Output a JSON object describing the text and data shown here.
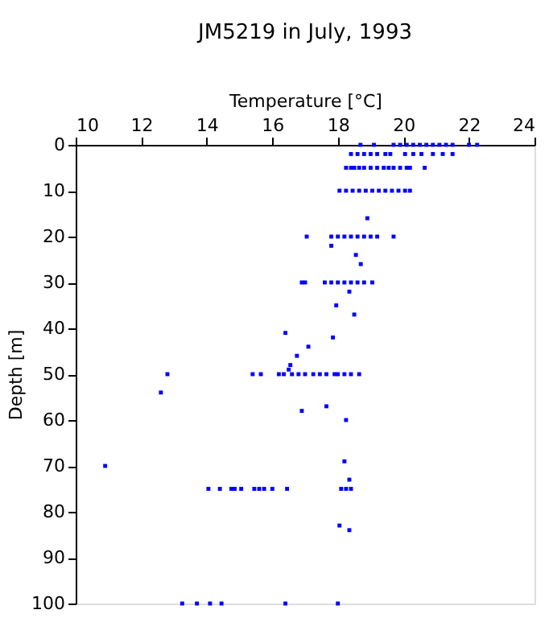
{
  "chart_data": {
    "type": "scatter",
    "title": "JM5219 in July, 1993",
    "xlabel": "Temperature [°C]",
    "ylabel": "Depth [m]",
    "xlim": [
      10,
      24
    ],
    "xticks": [
      10,
      12,
      14,
      16,
      18,
      20,
      22,
      24
    ],
    "ylim": [
      100,
      0
    ],
    "yticks": [
      0,
      10,
      20,
      30,
      40,
      50,
      60,
      70,
      80,
      90,
      100
    ],
    "grid": false,
    "marker": "square",
    "series": [
      {
        "color": "#0000ff",
        "x": [
          18.69,
          19.1,
          19.7,
          19.9,
          20.1,
          20.3,
          20.5,
          20.7,
          20.9,
          21.1,
          21.3,
          21.5,
          22.0,
          22.25,
          18.4,
          18.6,
          18.8,
          19.0,
          19.2,
          19.45,
          19.6,
          20.05,
          20.3,
          20.55,
          20.9,
          21.2,
          21.5,
          18.25,
          18.4,
          18.5,
          18.65,
          18.8,
          19.0,
          19.2,
          19.4,
          19.55,
          19.7,
          19.9,
          20.1,
          20.2,
          20.65,
          18.05,
          18.25,
          18.45,
          18.65,
          18.85,
          19.05,
          19.25,
          19.45,
          19.65,
          19.85,
          20.05,
          20.2,
          18.9,
          17.05,
          17.8,
          18.0,
          18.2,
          18.4,
          18.6,
          18.8,
          19.0,
          19.2,
          19.7,
          17.8,
          18.55,
          18.7,
          16.9,
          17.0,
          17.6,
          17.8,
          18.0,
          18.2,
          18.4,
          18.6,
          18.8,
          19.05,
          18.35,
          17.95,
          18.5,
          16.4,
          17.85,
          17.1,
          16.75,
          16.55,
          16.5,
          12.8,
          15.4,
          15.65,
          16.2,
          16.35,
          16.6,
          16.8,
          17.0,
          17.25,
          17.45,
          17.65,
          17.9,
          18.0,
          18.2,
          18.4,
          18.65,
          12.6,
          17.65,
          16.9,
          18.25,
          18.2,
          10.9,
          18.35,
          14.05,
          14.4,
          14.75,
          14.85,
          15.05,
          15.45,
          15.6,
          15.75,
          16.0,
          16.45,
          18.1,
          18.25,
          18.4,
          18.05,
          18.35,
          13.25,
          13.7,
          14.1,
          14.45,
          16.4,
          18.0
        ],
        "values": [
          0,
          0,
          0,
          0,
          0,
          0,
          0,
          0,
          0,
          0,
          0,
          0,
          0,
          0,
          2,
          2,
          2,
          2,
          2,
          2,
          2,
          2,
          2,
          2,
          2,
          2,
          2,
          5,
          5,
          5,
          5,
          5,
          5,
          5,
          5,
          5,
          5,
          5,
          5,
          5,
          5,
          10,
          10,
          10,
          10,
          10,
          10,
          10,
          10,
          10,
          10,
          10,
          10,
          16,
          20,
          20,
          20,
          20,
          20,
          20,
          20,
          20,
          20,
          20,
          22,
          24,
          26,
          30,
          30,
          30,
          30,
          30,
          30,
          30,
          30,
          30,
          30,
          32,
          35,
          37,
          41,
          42,
          44,
          46,
          48,
          49,
          50,
          50,
          50,
          50,
          50,
          50,
          50,
          50,
          50,
          50,
          50,
          50,
          50,
          50,
          50,
          50,
          54,
          57,
          58,
          60,
          69,
          70,
          73,
          75,
          75,
          75,
          75,
          75,
          75,
          75,
          75,
          75,
          75,
          75,
          75,
          75,
          83,
          84,
          100,
          100,
          100,
          100,
          100,
          100
        ]
      }
    ]
  }
}
